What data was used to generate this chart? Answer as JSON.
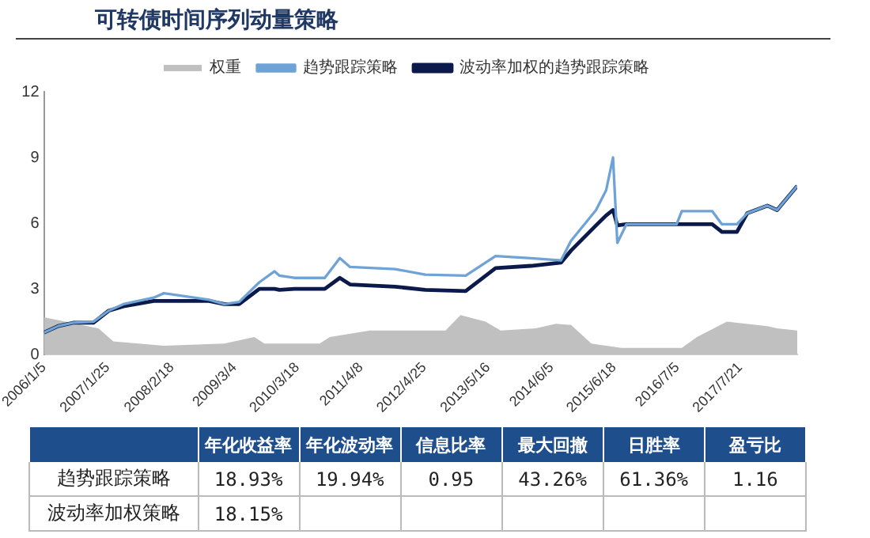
{
  "chart_data": [
    {
      "type": "line",
      "title": "可转债时间序列动量策略",
      "legend": "top",
      "grid": false,
      "x": [
        "2006-01-05",
        "2006-04",
        "2006-07",
        "2006-11",
        "2007-02",
        "2007-05",
        "2007-11",
        "2008-01",
        "2008-10",
        "2009-01",
        "2009-04",
        "2009-08",
        "2009-11",
        "2009-12",
        "2010-03",
        "2010-09",
        "2010-12",
        "2011-02",
        "2011-11",
        "2012-05",
        "2013-01",
        "2013-07",
        "2014-02",
        "2014-08",
        "2014-10",
        "2015-03",
        "2015-05",
        "2015-06-12",
        "2015-07-08",
        "2015-09",
        "2015-10",
        "2016-07",
        "2016-08",
        "2017-02",
        "2017-04",
        "2017-07",
        "2017-09",
        "2018-01",
        "2018-03",
        "2018-07"
      ],
      "series": [
        {
          "name": "权重",
          "type": "area",
          "color": "#c0c0c0",
          "x": [
            "2006-01-05",
            "2006-12",
            "2007-03",
            "2008-01",
            "2009-01",
            "2009-07",
            "2009-09",
            "2010-08",
            "2010-10",
            "2011-06",
            "2011-10",
            "2012-02",
            "2012-09",
            "2012-12",
            "2013-05",
            "2013-08",
            "2014-03",
            "2014-07",
            "2014-10",
            "2015-02",
            "2015-08",
            "2016-08",
            "2016-11",
            "2017-05",
            "2018-01",
            "2018-03",
            "2018-07"
          ],
          "values": [
            1.7,
            1.2,
            0.6,
            0.4,
            0.5,
            0.8,
            0.5,
            0.5,
            0.8,
            1.1,
            1.1,
            1.1,
            1.1,
            1.8,
            1.5,
            1.1,
            1.2,
            1.4,
            1.35,
            0.5,
            0.3,
            0.3,
            0.8,
            1.5,
            1.3,
            1.2,
            1.1
          ]
        },
        {
          "name": "趋势跟踪策略",
          "type": "line",
          "color": "#6fa3d6",
          "values": [
            1.0,
            1.3,
            1.45,
            1.5,
            2.0,
            2.3,
            2.6,
            2.8,
            2.5,
            2.3,
            2.4,
            3.3,
            3.8,
            3.6,
            3.5,
            3.5,
            4.4,
            4.0,
            3.9,
            3.65,
            3.6,
            4.5,
            4.4,
            4.3,
            5.2,
            6.6,
            7.5,
            9.0,
            5.1,
            5.95,
            5.95,
            5.95,
            6.55,
            6.55,
            5.95,
            5.95,
            6.45,
            6.8,
            6.6,
            7.7
          ]
        },
        {
          "name": "波动率加权的趋势跟踪策略",
          "type": "line",
          "color": "#0b1a4a",
          "values": [
            1.0,
            1.3,
            1.45,
            1.45,
            2.0,
            2.2,
            2.45,
            2.45,
            2.45,
            2.3,
            2.3,
            3.0,
            3.0,
            2.95,
            3.0,
            3.0,
            3.5,
            3.2,
            3.1,
            2.95,
            2.9,
            3.95,
            4.05,
            4.2,
            4.75,
            5.9,
            6.35,
            6.6,
            5.9,
            5.95,
            5.95,
            5.95,
            5.95,
            5.95,
            5.6,
            5.6,
            6.45,
            6.8,
            6.6,
            7.7
          ]
        }
      ],
      "xlim": [
        "2006-01-05",
        "2018-07"
      ],
      "xticks": [
        {
          "value": "2006-01-05",
          "label": "2006/1/5"
        },
        {
          "value": "2007-01-25",
          "label": "2007/1/25"
        },
        {
          "value": "2008-02-18",
          "label": "2008/2/18"
        },
        {
          "value": "2009-03-04",
          "label": "2009/3/4"
        },
        {
          "value": "2010-03-18",
          "label": "2010/3/18"
        },
        {
          "value": "2011-04-08",
          "label": "2011/4/8"
        },
        {
          "value": "2012-04-25",
          "label": "2012/4/25"
        },
        {
          "value": "2013-05-16",
          "label": "2013/5/16"
        },
        {
          "value": "2014-06-05",
          "label": "2014/6/5"
        },
        {
          "value": "2015-06-18",
          "label": "2015/6/18"
        },
        {
          "value": "2016-07-05",
          "label": "2016/7/5"
        },
        {
          "value": "2017-07-21",
          "label": "2017/7/21"
        }
      ],
      "ylim": [
        0,
        12
      ],
      "yticks": [
        0,
        3,
        6,
        9,
        12
      ]
    },
    {
      "type": "other",
      "categories": [
        "年化收益率",
        "年化波动率",
        "信息比率",
        "最大回撤",
        "日胜率",
        "盈亏比"
      ],
      "y_categories": [
        "趋势跟踪策略",
        "波动率加权策略"
      ],
      "cell_labels": [
        [
          "18.93%",
          "19.94%",
          "0.95",
          "43.26%",
          "61.36%",
          "1.16"
        ],
        [
          "18.15%",
          null,
          null,
          null,
          null,
          null
        ]
      ]
    }
  ]
}
